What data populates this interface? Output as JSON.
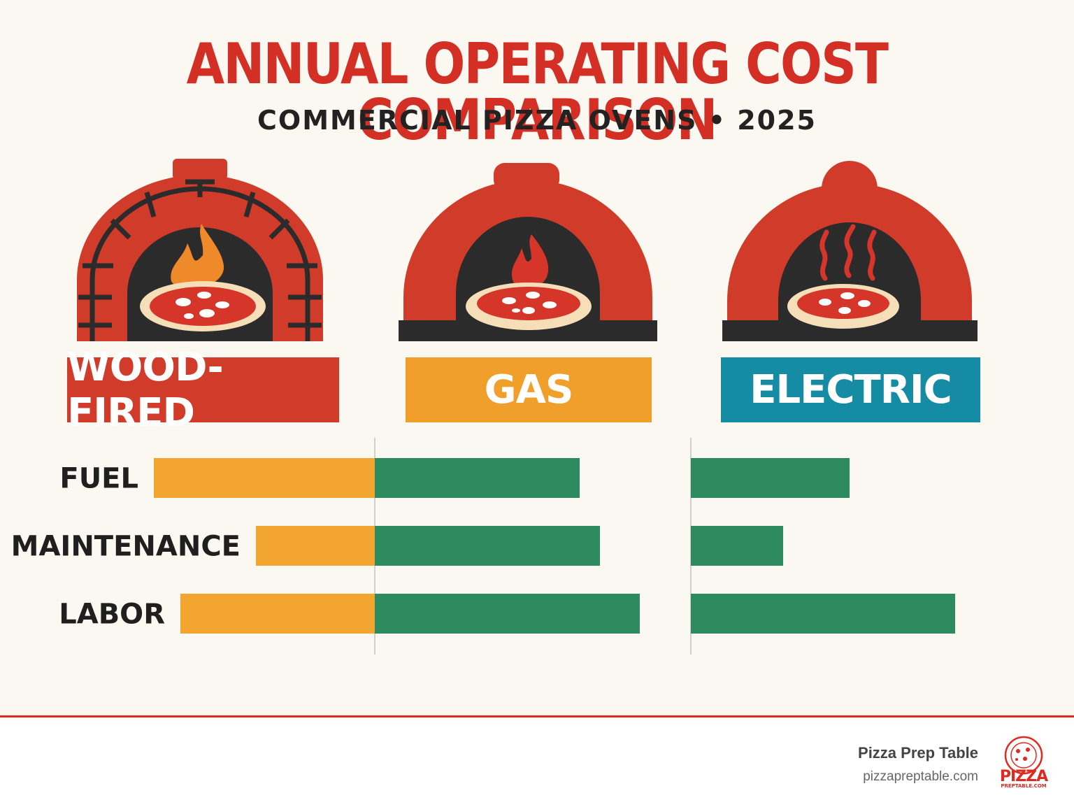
{
  "header": {
    "title": "ANNUAL OPERATING COST COMPARISON",
    "subtitle": "COMMERCIAL PIZZA OVENS • 2025"
  },
  "ovens": [
    {
      "label": "WOOD-FIRED",
      "color": "#d13b2a",
      "icon": "brick-oven-icon"
    },
    {
      "label": "GAS",
      "color": "#f0a02a",
      "icon": "gas-oven-icon"
    },
    {
      "label": "ELECTRIC",
      "color": "#168ba4",
      "icon": "electric-oven-icon"
    }
  ],
  "chart_data": {
    "type": "bar",
    "categories": [
      "FUEL",
      "MAINTENANCE",
      "LABOR"
    ],
    "colors": {
      "orange": "#f2a630",
      "green": "#2e8b5f"
    },
    "series": [
      {
        "color": "orange",
        "direction": "left-of-center",
        "values": [
          316,
          170,
          278
        ]
      },
      {
        "color": "green",
        "direction": "right-of-center",
        "values": [
          293,
          322,
          379
        ]
      },
      {
        "color": "green",
        "direction": "right-of-second-axis",
        "values": [
          227,
          132,
          378
        ]
      }
    ]
  },
  "footer": {
    "brand_name": "Pizza Prep Table",
    "brand_url": "pizzapreptable.com",
    "logo_word": "PIZZA",
    "logo_sub": "PREPTABLE.COM",
    "accent": "#e0291f"
  }
}
